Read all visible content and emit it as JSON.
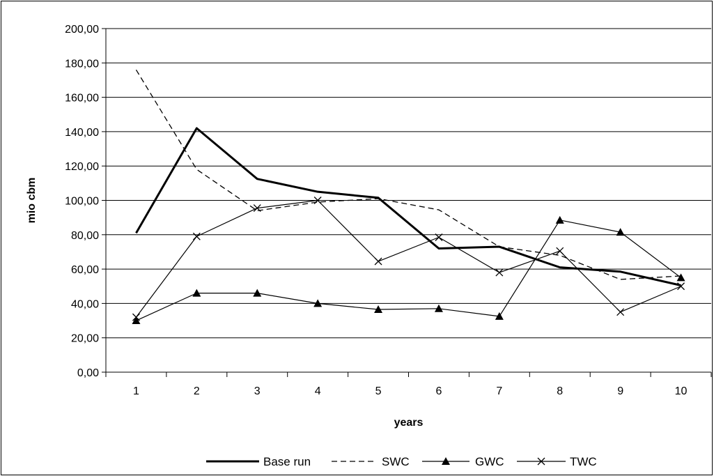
{
  "chart_data": {
    "type": "line",
    "xlabel": "years",
    "ylabel": "mio cbm",
    "categories": [
      "1",
      "2",
      "3",
      "4",
      "5",
      "6",
      "7",
      "8",
      "9",
      "10"
    ],
    "ylim": [
      0,
      200
    ],
    "yticks": [
      "0,00",
      "20,00",
      "40,00",
      "60,00",
      "80,00",
      "100,00",
      "120,00",
      "140,00",
      "160,00",
      "180,00",
      "200,00"
    ],
    "grid": "horizontal",
    "legend_position": "bottom",
    "series": [
      {
        "name": "Base run",
        "style": "thick-solid",
        "marker": "none",
        "values": [
          81,
          142,
          112.5,
          105,
          101.5,
          72,
          73,
          61,
          58.5,
          50.5
        ]
      },
      {
        "name": "SWC",
        "style": "dashed",
        "marker": "none",
        "values": [
          176,
          118,
          94,
          99,
          101,
          94.5,
          73,
          68,
          54,
          56
        ]
      },
      {
        "name": "GWC",
        "style": "solid",
        "marker": "triangle",
        "values": [
          30,
          46,
          46,
          40,
          36.5,
          37,
          32.5,
          88.5,
          81.5,
          55
        ]
      },
      {
        "name": "TWC",
        "style": "solid",
        "marker": "x",
        "values": [
          32,
          79,
          95.5,
          100,
          64.5,
          78.5,
          58,
          70.5,
          35,
          50
        ]
      }
    ]
  }
}
